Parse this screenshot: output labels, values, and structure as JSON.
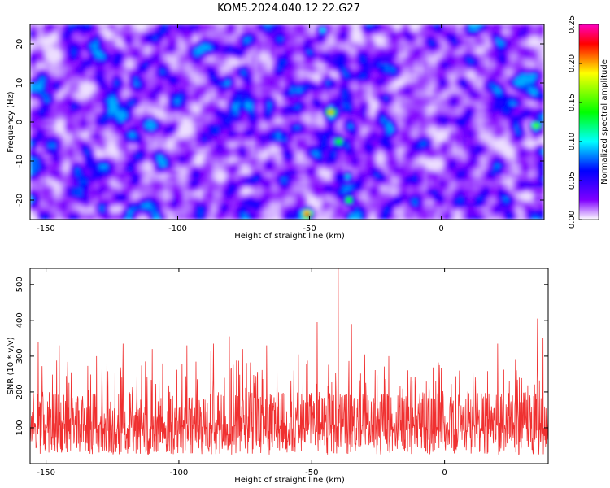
{
  "title": "KOM5.2024.040.12.22.G27",
  "chart_data": [
    {
      "type": "heatmap",
      "xlabel": "Height of straight line (km)",
      "ylabel": "Frequency (Hz)",
      "xlim": [
        -156,
        39
      ],
      "ylim": [
        -25,
        25
      ],
      "xticks": [
        -150,
        -100,
        -50,
        0
      ],
      "yticks": [
        -20,
        -10,
        0,
        10,
        20
      ],
      "colorbar": {
        "label": "Normalized spectral amplitude",
        "range": [
          0.0,
          0.25
        ],
        "ticks": [
          "0.00",
          "0.05",
          "0.10",
          "0.15",
          "0.20",
          "0.25"
        ],
        "colors": [
          "#ffffff",
          "#8000ff",
          "#0000ff",
          "#00ffff",
          "#00ff00",
          "#ffff00",
          "#ff0000",
          "#ff00c0"
        ]
      },
      "background_level": 0.03,
      "hotspots": [
        {
          "x": -51,
          "y": -23.5,
          "value": 0.24
        },
        {
          "x": -42,
          "y": 2.5,
          "value": 0.22
        },
        {
          "x": -39,
          "y": -5,
          "value": 0.16
        },
        {
          "x": -35,
          "y": -20,
          "value": 0.15
        },
        {
          "x": -35.5,
          "y": -14,
          "value": 0.11
        },
        {
          "x": 36,
          "y": -1,
          "value": 0.17
        },
        {
          "x": -50,
          "y": 18,
          "value": 0.09
        },
        {
          "x": -45,
          "y": 23.5,
          "value": 0.11
        },
        {
          "x": -158,
          "y": 0,
          "value": 0.1
        }
      ]
    },
    {
      "type": "line",
      "xlabel": "Height of straight line (km)",
      "ylabel": "SNR (10 * v/v)",
      "xlim": [
        -156,
        39
      ],
      "ylim": [
        0,
        545
      ],
      "xticks": [
        -150,
        -100,
        -50,
        0
      ],
      "yticks": [
        100,
        200,
        300,
        400,
        500
      ],
      "color": "#f03030",
      "baseline_mean": 110,
      "spikes": [
        {
          "x": -153,
          "y": 340
        },
        {
          "x": -145,
          "y": 330
        },
        {
          "x": -131,
          "y": 300
        },
        {
          "x": -121,
          "y": 335
        },
        {
          "x": -110,
          "y": 320
        },
        {
          "x": -97,
          "y": 330
        },
        {
          "x": -88,
          "y": 315
        },
        {
          "x": -87,
          "y": 335
        },
        {
          "x": -81,
          "y": 355
        },
        {
          "x": -76,
          "y": 320
        },
        {
          "x": -67,
          "y": 330
        },
        {
          "x": -55,
          "y": 305
        },
        {
          "x": -48,
          "y": 395
        },
        {
          "x": -40,
          "y": 545
        },
        {
          "x": -35,
          "y": 390
        },
        {
          "x": -30,
          "y": 305
        },
        {
          "x": -21,
          "y": 300
        },
        {
          "x": 20,
          "y": 335
        },
        {
          "x": 35,
          "y": 405
        },
        {
          "x": 37,
          "y": 350
        }
      ]
    }
  ]
}
